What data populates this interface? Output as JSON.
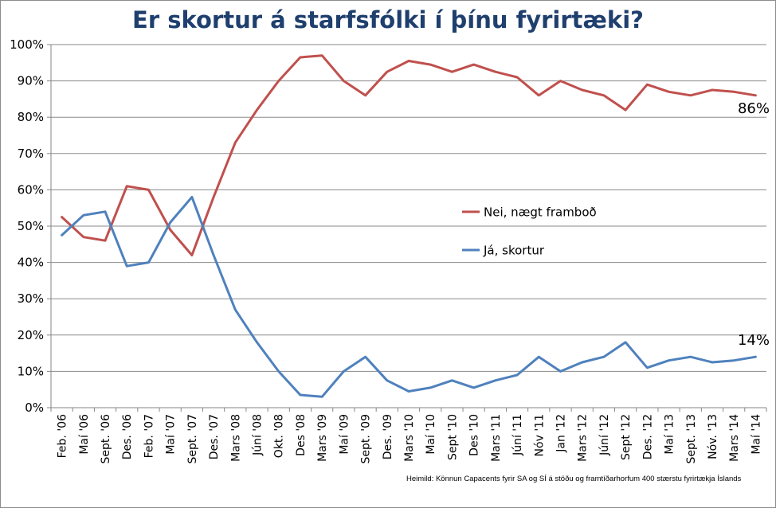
{
  "chart_data": {
    "type": "line",
    "title": "Er skortur á starfsfólki í þínu fyrirtæki?",
    "xlabel": "",
    "ylabel": "",
    "ylim": [
      0,
      100
    ],
    "yticks": [
      "0%",
      "10%",
      "20%",
      "30%",
      "40%",
      "50%",
      "60%",
      "70%",
      "80%",
      "90%",
      "100%"
    ],
    "grid": true,
    "legend_position": "center-right",
    "categories": [
      "Feb. '06",
      "Maí '06",
      "Sept. '06",
      "Des. '06",
      "Feb. '07",
      "Maí '07",
      "Sept. '07",
      "Des. '07",
      "Mars '08",
      "Júní '08",
      "Okt. '08",
      "Des '08",
      "Mars '09",
      "Maí '09",
      "Sept. '09",
      "Des. '09",
      "Mars '10",
      "Maí '10",
      "Sept '10",
      "Des '10",
      "Mars '11",
      "Júní '11",
      "Nóv '11",
      "Jan '12",
      "Mars '12",
      "Júní '12",
      "Sept '12",
      "Des. '12",
      "Maí '13",
      "Sept. '13",
      "Nóv. '13",
      "Mars '14",
      "Maí '14"
    ],
    "series": [
      {
        "name": "Nei, nægt framboð",
        "color": "#c0504d",
        "values": [
          52.5,
          47,
          46,
          61,
          60,
          49,
          42,
          58,
          73,
          82,
          90,
          96.5,
          97,
          90,
          86,
          92.5,
          95.5,
          94.5,
          92.5,
          94.5,
          92.5,
          91,
          86,
          90,
          87.5,
          86,
          82,
          89,
          87,
          86,
          87.5,
          87,
          86
        ]
      },
      {
        "name": "Já, skortur",
        "color": "#4f81bd",
        "values": [
          47.5,
          53,
          54,
          39,
          40,
          51,
          58,
          42,
          27,
          18,
          10,
          3.5,
          3,
          10,
          14,
          7.5,
          4.5,
          5.5,
          7.5,
          5.5,
          7.5,
          9,
          14,
          10,
          12.5,
          14,
          18,
          11,
          13,
          14,
          12.5,
          13,
          14
        ]
      }
    ],
    "end_labels": [
      "86%",
      "14%"
    ]
  },
  "source_note": "Heimild: Könnun Capacents fyrir SA og SÍ á stöðu og framtíðarhorfum 400 stærstu fyrirtækja Íslands"
}
